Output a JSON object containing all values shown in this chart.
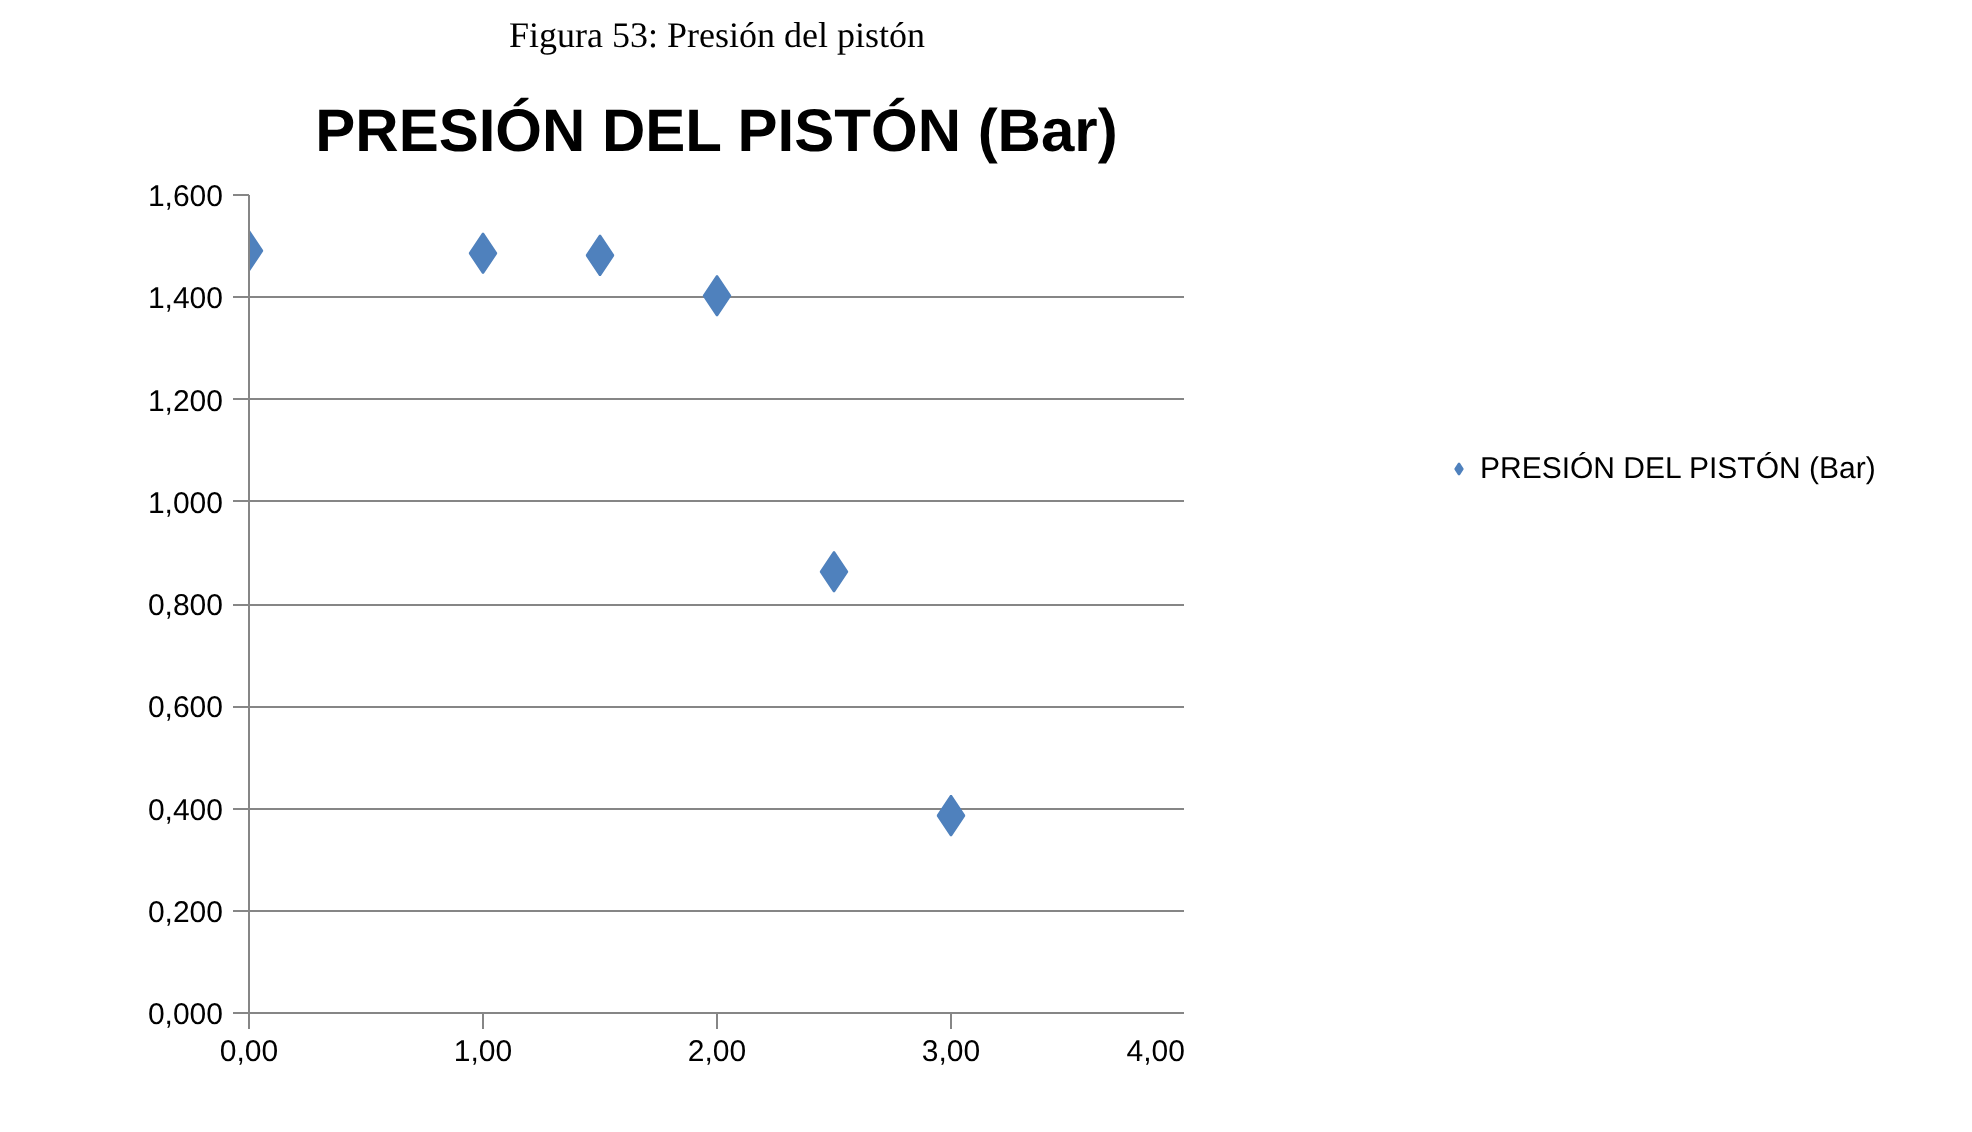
{
  "chart_data": {
    "type": "scatter",
    "title": "PRESIÓN DEL PISTÓN (Bar)",
    "annotations": [
      "Figura 53: Presión del pistón"
    ],
    "x": [
      0,
      1,
      1.5,
      2,
      2.5,
      3
    ],
    "series": [
      {
        "name": "PRESIÓN DEL PISTÓN (Bar)",
        "color": "#4f81bd",
        "values": [
          1.491,
          1.486,
          1.482,
          1.403,
          0.863,
          0.386
        ]
      }
    ],
    "marker": "diamond",
    "grid": "y",
    "legend": "right",
    "xlim": [
      0,
      4
    ],
    "xticks": [
      {
        "value": 0,
        "label": "0,00"
      },
      {
        "value": 1,
        "label": "1,00"
      },
      {
        "value": 2,
        "label": "2,00"
      },
      {
        "value": 3,
        "label": "3,00"
      },
      {
        "value": 4,
        "label": "4,00"
      }
    ],
    "ylim": [
      0,
      1.6
    ],
    "yticks": [
      {
        "value": 0,
        "label": "0,000"
      },
      {
        "value": 0.2,
        "label": "0,200"
      },
      {
        "value": 0.4,
        "label": "0,400"
      },
      {
        "value": 0.6,
        "label": "0,600"
      },
      {
        "value": 0.8,
        "label": "0,800"
      },
      {
        "value": 1.0,
        "label": "1,000"
      },
      {
        "value": 1.2,
        "label": "1,200"
      },
      {
        "value": 1.4,
        "label": "1,400"
      },
      {
        "value": 1.6,
        "label": "1,600"
      }
    ]
  }
}
